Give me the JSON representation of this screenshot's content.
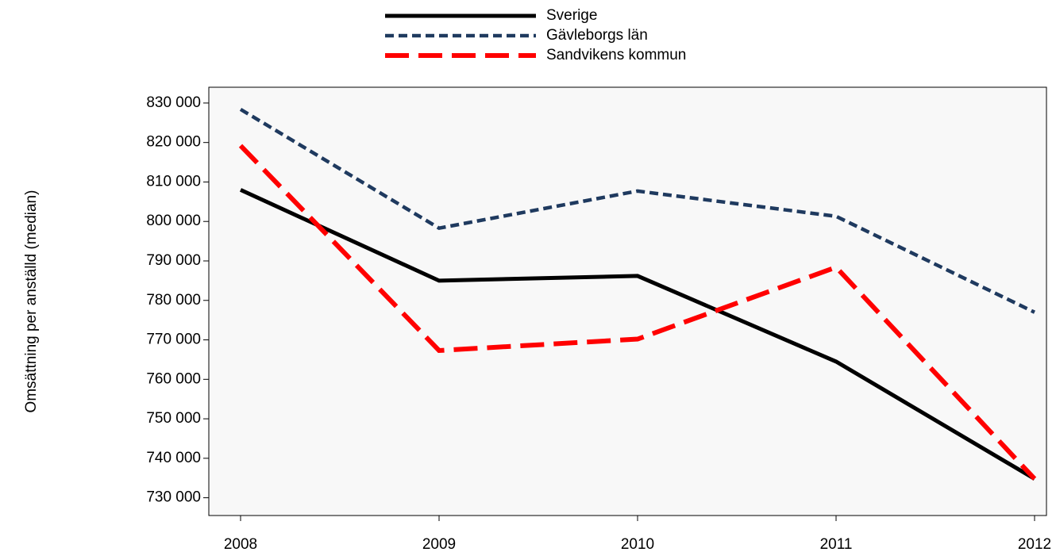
{
  "chart_data": {
    "type": "line",
    "ylabel": "Omsättning per anställd (median)",
    "x": [
      2008,
      2009,
      2010,
      2011,
      2012
    ],
    "xlim": [
      2007.84,
      2012.06
    ],
    "xticks": [
      2008,
      2009,
      2010,
      2011,
      2012
    ],
    "ylim": [
      725500,
      834000
    ],
    "yticks": [
      {
        "value": 730000,
        "label": "730 000"
      },
      {
        "value": 740000,
        "label": "740 000"
      },
      {
        "value": 750000,
        "label": "750 000"
      },
      {
        "value": 760000,
        "label": "760 000"
      },
      {
        "value": 770000,
        "label": "770 000"
      },
      {
        "value": 780000,
        "label": "780 000"
      },
      {
        "value": 790000,
        "label": "790 000"
      },
      {
        "value": 800000,
        "label": "800 000"
      },
      {
        "value": 810000,
        "label": "810 000"
      },
      {
        "value": 820000,
        "label": "820 000"
      },
      {
        "value": 830000,
        "label": "830 000"
      }
    ],
    "series": [
      {
        "name": "Sverige",
        "color": "#000000",
        "values": [
          808000,
          785000,
          786200,
          764500,
          734800
        ]
      },
      {
        "name": "Gävleborgs län",
        "color": "#1f3a5f",
        "values": [
          828400,
          798300,
          807700,
          801300,
          777000
        ]
      },
      {
        "name": "Sandvikens kommun",
        "color": "#ff0000",
        "values": [
          819200,
          767300,
          770200,
          788400,
          734800
        ]
      }
    ]
  }
}
